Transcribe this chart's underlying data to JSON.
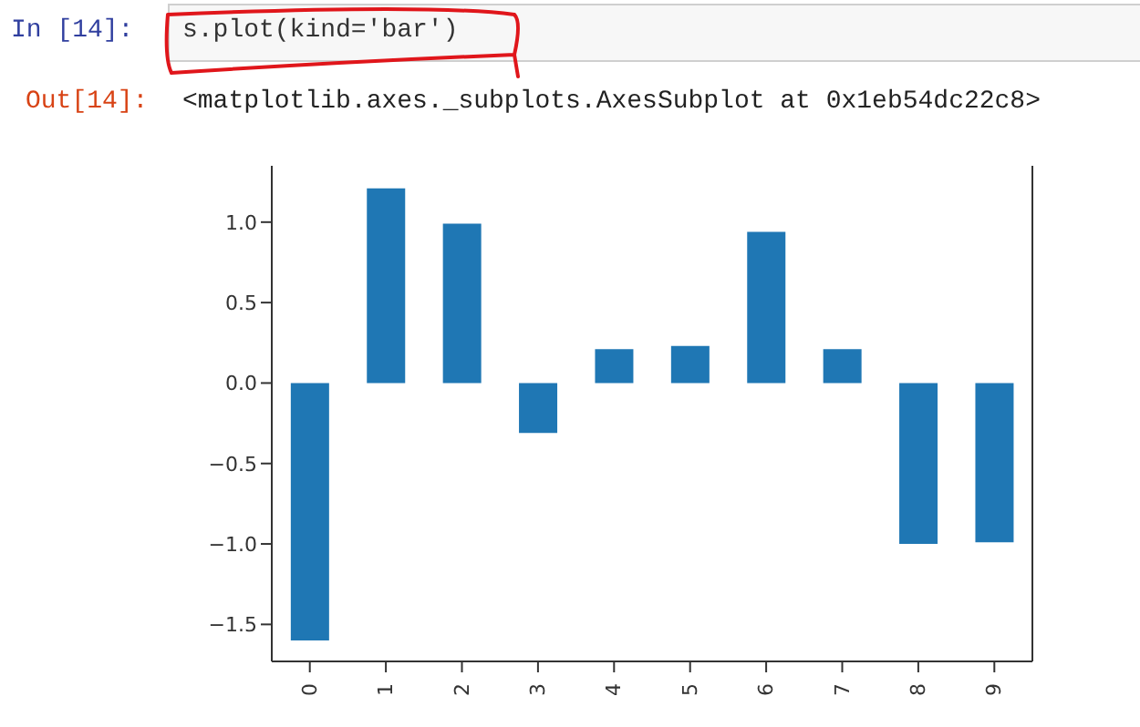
{
  "chart_data": {
    "type": "bar",
    "annotations": [
      "In [14]:",
      "s.plot(kind='bar')",
      "Out[14]:",
      "<matplotlib.axes._subplots.AxesSubplot at 0x1eb54dc22c8>"
    ],
    "categories": [
      "0",
      "1",
      "2",
      "3",
      "4",
      "5",
      "6",
      "7",
      "8",
      "9"
    ],
    "values": [
      -1.6,
      1.21,
      0.99,
      -0.31,
      0.21,
      0.23,
      0.94,
      0.21,
      -1.0,
      -0.99
    ],
    "color": "#1f77b4",
    "ylim": [
      -1.73,
      1.35
    ],
    "yticks": [
      {
        "value": -1.5,
        "label": "−1.5"
      },
      {
        "value": -1.0,
        "label": "−1.0"
      },
      {
        "value": -0.5,
        "label": "−0.5"
      },
      {
        "value": 0.0,
        "label": "0.0"
      },
      {
        "value": 0.5,
        "label": "0.5"
      },
      {
        "value": 1.0,
        "label": "1.0"
      }
    ]
  }
}
